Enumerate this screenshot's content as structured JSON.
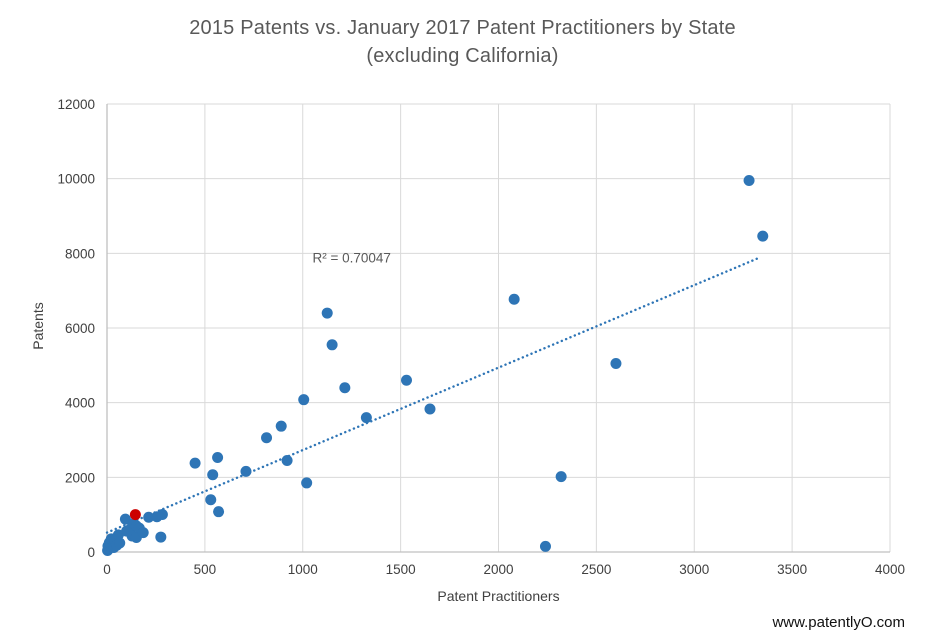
{
  "page": {
    "watermark": "www.patentlyO.com"
  },
  "chart_data": {
    "type": "scatter",
    "title_line1": "2015 Patents vs. January 2017 Patent Practitioners by State",
    "title_line2": "(excluding California)",
    "xlabel": "Patent Practitioners",
    "ylabel": "Patents",
    "xlim": [
      0,
      4000
    ],
    "ylim": [
      0,
      12000
    ],
    "x_ticks": [
      0,
      500,
      1000,
      1500,
      2000,
      2500,
      3000,
      3500,
      4000
    ],
    "y_ticks": [
      0,
      2000,
      4000,
      6000,
      8000,
      10000,
      12000
    ],
    "grid": true,
    "legend": "none",
    "colors": {
      "point": "#2E75B6",
      "highlight_point": "#CC0000",
      "gridline": "#D9D9D9",
      "axis_line": "#C0C0C0",
      "title_text": "#595959",
      "tick_text": "#404040"
    },
    "annotation": {
      "text": "R² = 0.70047",
      "x": 1250,
      "y": 7880
    },
    "trendline": {
      "style": "dotted",
      "color": "#2E75B6",
      "x1": 0,
      "y1": 520,
      "x2": 3340,
      "y2": 7900,
      "r_squared": 0.70047
    },
    "series": [
      {
        "name": "states",
        "color": "#2E75B6",
        "points": [
          [
            3,
            40
          ],
          [
            8,
            80
          ],
          [
            5,
            160
          ],
          [
            18,
            150
          ],
          [
            12,
            250
          ],
          [
            28,
            210
          ],
          [
            22,
            350
          ],
          [
            35,
            120
          ],
          [
            40,
            300
          ],
          [
            50,
            180
          ],
          [
            58,
            460
          ],
          [
            65,
            240
          ],
          [
            94,
            880
          ],
          [
            100,
            560
          ],
          [
            120,
            620
          ],
          [
            128,
            430
          ],
          [
            135,
            760
          ],
          [
            150,
            700
          ],
          [
            150,
            390
          ],
          [
            165,
            640
          ],
          [
            185,
            520
          ],
          [
            213,
            930
          ],
          [
            255,
            945
          ],
          [
            275,
            400
          ],
          [
            283,
            1005
          ],
          [
            450,
            2380
          ],
          [
            530,
            1400
          ],
          [
            540,
            2070
          ],
          [
            565,
            2530
          ],
          [
            570,
            1080
          ],
          [
            710,
            2160
          ],
          [
            815,
            3060
          ],
          [
            890,
            3370
          ],
          [
            920,
            2450
          ],
          [
            1005,
            4080
          ],
          [
            1020,
            1850
          ],
          [
            1125,
            6400
          ],
          [
            1150,
            5550
          ],
          [
            1215,
            4400
          ],
          [
            1325,
            3600
          ],
          [
            1530,
            4600
          ],
          [
            1650,
            3830
          ],
          [
            2080,
            6770
          ],
          [
            2240,
            150
          ],
          [
            2320,
            2020
          ],
          [
            2600,
            5050
          ],
          [
            3280,
            9950
          ],
          [
            3350,
            8460
          ]
        ]
      },
      {
        "name": "highlighted-state",
        "color": "#CC0000",
        "points": [
          [
            145,
            1000
          ]
        ]
      }
    ]
  }
}
